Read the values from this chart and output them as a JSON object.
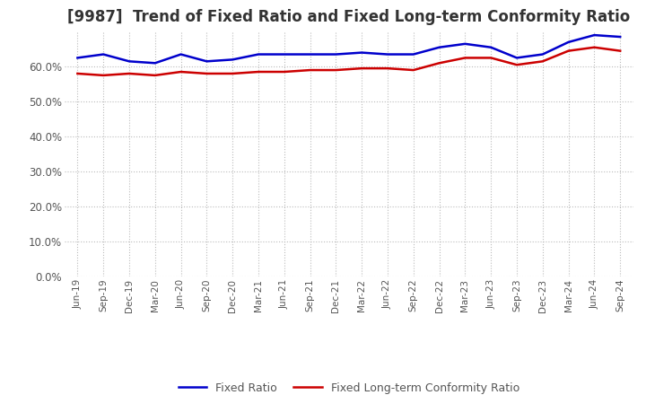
{
  "title": "[9987]  Trend of Fixed Ratio and Fixed Long-term Conformity Ratio",
  "title_fontsize": 12,
  "x_labels": [
    "Jun-19",
    "Sep-19",
    "Dec-19",
    "Mar-20",
    "Jun-20",
    "Sep-20",
    "Dec-20",
    "Mar-21",
    "Jun-21",
    "Sep-21",
    "Dec-21",
    "Mar-22",
    "Jun-22",
    "Sep-22",
    "Dec-22",
    "Mar-23",
    "Jun-23",
    "Sep-23",
    "Dec-23",
    "Mar-24",
    "Jun-24",
    "Sep-24"
  ],
  "fixed_ratio": [
    62.5,
    63.5,
    61.5,
    61.0,
    63.5,
    61.5,
    62.0,
    63.5,
    63.5,
    63.5,
    63.5,
    64.0,
    63.5,
    63.5,
    65.5,
    66.5,
    65.5,
    62.5,
    63.5,
    67.0,
    69.0,
    68.5
  ],
  "fixed_lt_ratio": [
    58.0,
    57.5,
    58.0,
    57.5,
    58.5,
    58.0,
    58.0,
    58.5,
    58.5,
    59.0,
    59.0,
    59.5,
    59.5,
    59.0,
    61.0,
    62.5,
    62.5,
    60.5,
    61.5,
    64.5,
    65.5,
    64.5
  ],
  "fixed_ratio_color": "#0000cc",
  "fixed_lt_ratio_color": "#cc0000",
  "ylim_min": 0,
  "ylim_max": 70,
  "yticks": [
    0,
    10,
    20,
    30,
    40,
    50,
    60
  ],
  "background_color": "#ffffff",
  "plot_bg_color": "#ffffff",
  "grid_color": "#bbbbbb",
  "legend_labels": [
    "Fixed Ratio",
    "Fixed Long-term Conformity Ratio"
  ],
  "line_width": 1.8
}
